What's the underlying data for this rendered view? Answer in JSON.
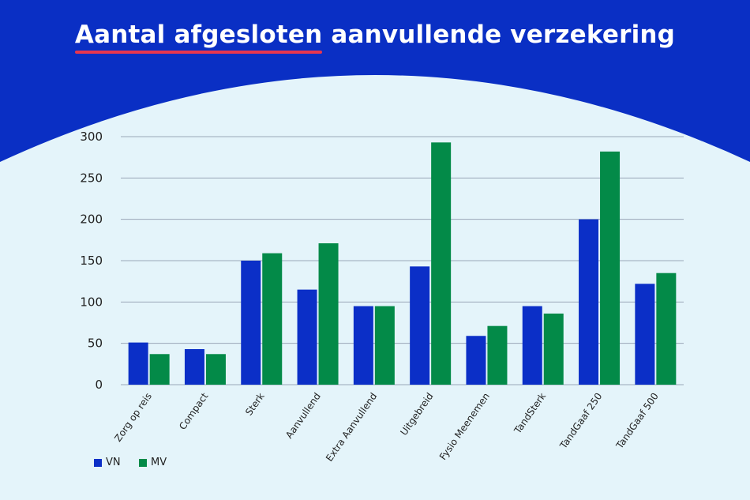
{
  "header": {
    "title_underlined": "Aantal afgesloten",
    "title_rest": "aanvullende verzekering"
  },
  "colors": {
    "header_bg": "#0a2fc4",
    "page_bg": "#e4f4fa",
    "accent_underline": "#e8364f",
    "series_vn": "#0b2fc7",
    "series_mv": "#038a48",
    "gridline": "#9aa7b8"
  },
  "chart_data": {
    "type": "bar",
    "title": "Aantal afgesloten aanvullende verzekering",
    "categories": [
      "Zorg op reis",
      "Compact",
      "Sterk",
      "Aanvullend",
      "Extra  Aanvullend",
      "Uitgebreid",
      "Fysio Meenemen",
      "TandSterk",
      "TandGaaf 250",
      "TandGaaf 500"
    ],
    "series": [
      {
        "name": "VN",
        "color": "#0b2fc7",
        "values": [
          51,
          43,
          150,
          115,
          95,
          143,
          59,
          95,
          200,
          122
        ]
      },
      {
        "name": "MV",
        "color": "#038a48",
        "values": [
          37,
          37,
          159,
          171,
          95,
          293,
          71,
          86,
          282,
          135
        ]
      }
    ],
    "yticks": [
      0,
      50,
      100,
      150,
      200,
      250,
      300
    ],
    "ylim": [
      0,
      300
    ],
    "xlabel": "",
    "ylabel": "",
    "grid": true,
    "legend_position": "bottom-left"
  }
}
